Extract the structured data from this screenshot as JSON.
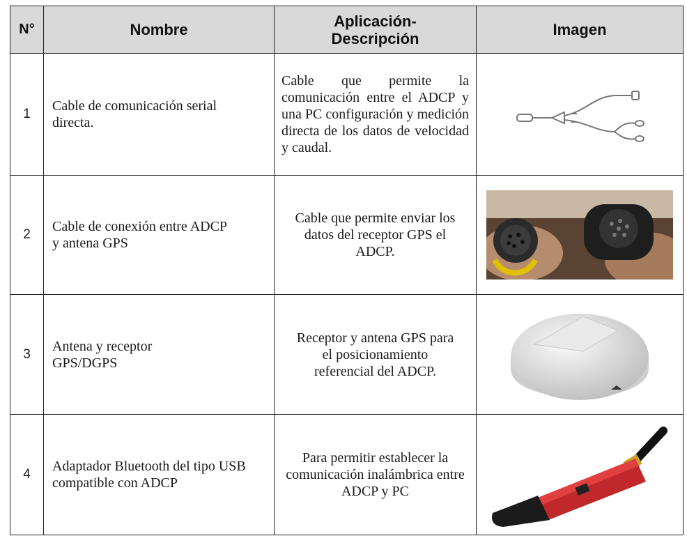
{
  "table": {
    "header": [
      "N°",
      "Nombre",
      "Aplicación-Descripción",
      "Imagen"
    ],
    "rows": [
      [
        "1",
        "Cable de comunicación serial directa.",
        "Cable que permite la comunicación entre el ADCP y una PC configuración y medición directa de los datos de velocidad y caudal."
      ],
      [
        "2",
        "Cable de conexión entre ADCP y antena GPS",
        "Cable que permite enviar los datos del receptor GPS el ADCP."
      ],
      [
        "3",
        "Antena y receptor GPS/DGPS",
        "Receptor y antena GPS para el posicionamiento referencial del ADCP."
      ],
      [
        "4",
        "Adaptador Bluetooth del tipo USB compatible con ADCP",
        "Para permitir establecer la comunicación inalámbrica entre ADCP y PC"
      ]
    ]
  }
}
